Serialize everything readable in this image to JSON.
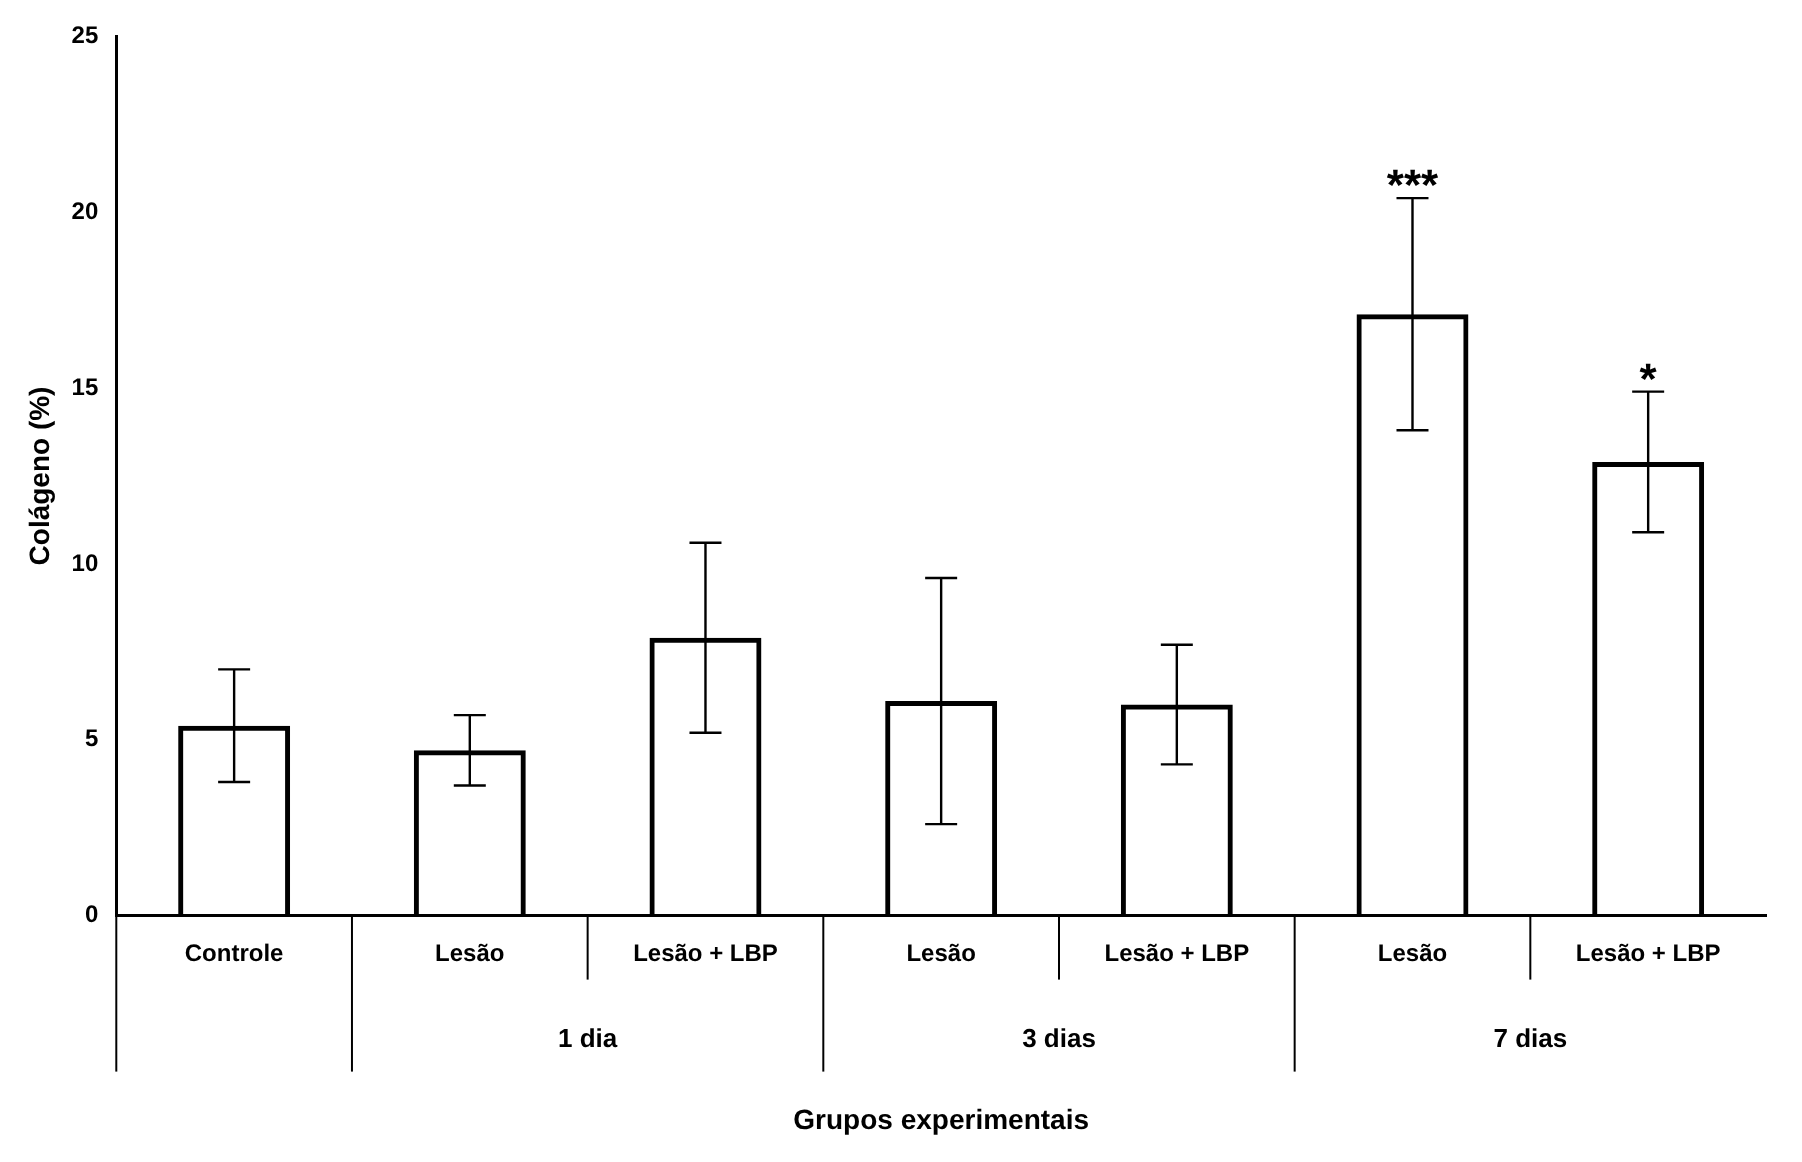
{
  "chart_data": {
    "type": "bar",
    "xlabel": "Grupos experimentais",
    "ylabel": "Colágeno (%)",
    "categories": [
      "Controle",
      "Lesão",
      "Lesão + LBP",
      "Lesão",
      "Lesão + LBP",
      "Lesão",
      "Lesão + LBP"
    ],
    "values": [
      5.4,
      4.7,
      7.9,
      6.1,
      6.0,
      17.1,
      12.9
    ],
    "errors": [
      1.6,
      1.0,
      2.7,
      3.5,
      1.7,
      3.3,
      2.0
    ],
    "value_labels": [
      null,
      null,
      null,
      null,
      null,
      "***",
      "*"
    ],
    "color": "#000000",
    "annotations": [
      "1 dia",
      "3 dias",
      "7 dias"
    ],
    "ylim": [
      0,
      25
    ],
    "yticks": [
      0,
      5,
      10,
      15,
      20,
      25
    ],
    "grid": false,
    "legend": false
  }
}
